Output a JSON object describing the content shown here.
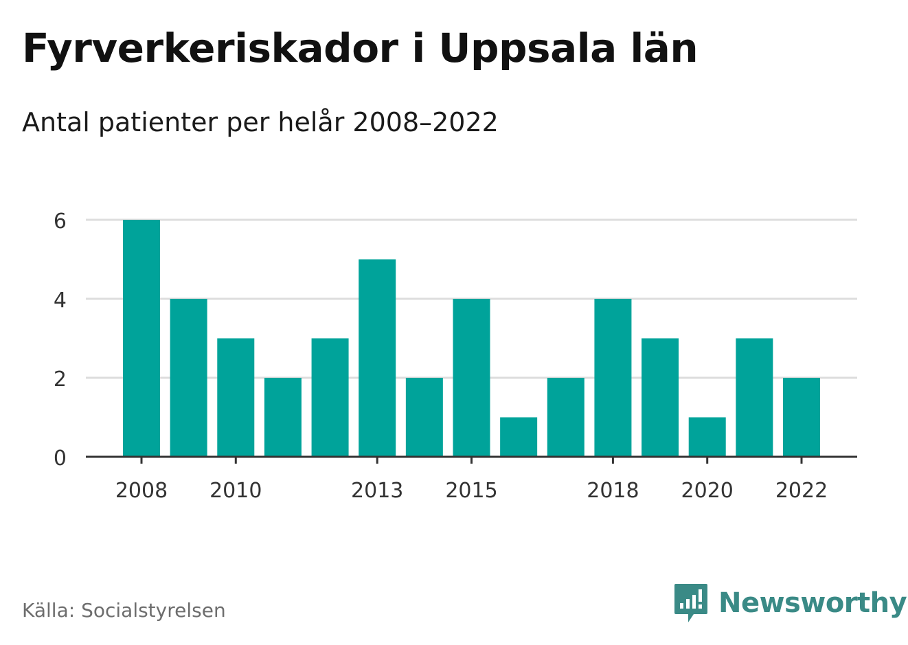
{
  "header": {
    "title": "Fyrverkeriskador i Uppsala län",
    "subtitle": "Antal patienter per helår 2008–2022"
  },
  "footer": {
    "source": "Källa: Socialstyrelsen",
    "brand": "Newsworthy",
    "brand_icon": "newsworthy-logo-icon"
  },
  "colors": {
    "bar": "#00a39a",
    "grid": "#dddddd",
    "axis": "#333333",
    "brand": "#3a8a86"
  },
  "chart_data": {
    "type": "bar",
    "categories": [
      "2008",
      "2009",
      "2010",
      "2011",
      "2012",
      "2013",
      "2014",
      "2015",
      "2016",
      "2017",
      "2018",
      "2019",
      "2020",
      "2021",
      "2022"
    ],
    "values": [
      6,
      4,
      3,
      2,
      3,
      5,
      2,
      4,
      1,
      2,
      4,
      3,
      1,
      3,
      2
    ],
    "x_tick_labels": [
      "2008",
      "2010",
      "2013",
      "2015",
      "2018",
      "2020",
      "2022"
    ],
    "y_ticks": [
      0,
      2,
      4,
      6
    ],
    "ylim": [
      0,
      6
    ],
    "grid": true,
    "title": "Fyrverkeriskador i Uppsala län",
    "subtitle": "Antal patienter per helår 2008–2022"
  }
}
